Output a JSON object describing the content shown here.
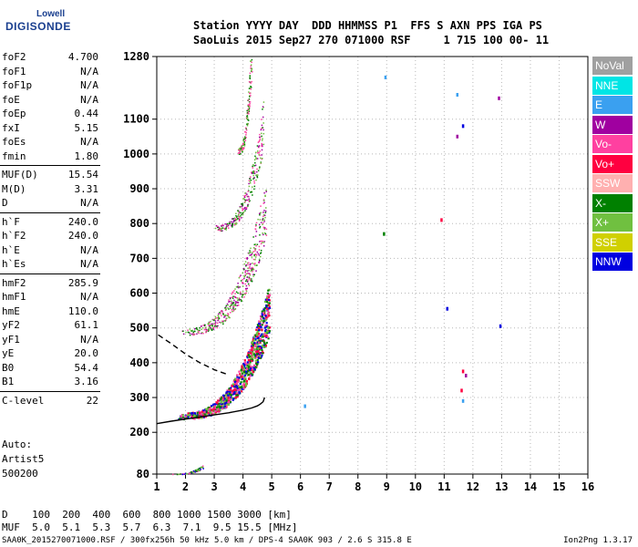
{
  "logo": {
    "line1": "Lowell",
    "line2": "DIGISONDE"
  },
  "header": {
    "line1": "Station YYYY DAY  DDD HHMMSS P1  FFS S AXN PPS IGA PS",
    "line2": "SaoLuis 2015 Sep27 270 071000 RSF     1 715 100 00- 11"
  },
  "params": [
    {
      "key": "foF2",
      "value": "4.700"
    },
    {
      "key": "foF1",
      "value": "N/A"
    },
    {
      "key": "foF1p",
      "value": "N/A"
    },
    {
      "key": "foE",
      "value": "N/A"
    },
    {
      "key": "foEp",
      "value": "0.44"
    },
    {
      "key": "fxI",
      "value": "5.15"
    },
    {
      "key": "foEs",
      "value": "N/A"
    },
    {
      "key": "fmin",
      "value": "1.80"
    },
    {
      "key": "MUF(D)",
      "value": "15.54"
    },
    {
      "key": "M(D)",
      "value": "3.31"
    },
    {
      "key": "D",
      "value": "N/A"
    },
    {
      "key": "h`F",
      "value": "240.0"
    },
    {
      "key": "h`F2",
      "value": "240.0"
    },
    {
      "key": "h`E",
      "value": "N/A"
    },
    {
      "key": "h`Es",
      "value": "N/A"
    },
    {
      "key": "hmF2",
      "value": "285.9"
    },
    {
      "key": "hmF1",
      "value": "N/A"
    },
    {
      "key": "hmE",
      "value": "110.0"
    },
    {
      "key": "yF2",
      "value": "61.1"
    },
    {
      "key": "yF1",
      "value": "N/A"
    },
    {
      "key": "yE",
      "value": "20.0"
    },
    {
      "key": "B0",
      "value": "54.4"
    },
    {
      "key": "B1",
      "value": "3.16"
    },
    {
      "key": "C-level",
      "value": "22"
    }
  ],
  "auto": {
    "line1": "Auto:",
    "line2": "Artist5",
    "line3": "500200"
  },
  "legend": [
    {
      "label": "NoVal",
      "color": "#a0a0a0"
    },
    {
      "label": "NNE",
      "color": "#00e5e5"
    },
    {
      "label": "E",
      "color": "#3aa0f0"
    },
    {
      "label": "W",
      "color": "#a000a0"
    },
    {
      "label": "Vo-",
      "color": "#ff40a0"
    },
    {
      "label": "Vo+",
      "color": "#ff0040"
    },
    {
      "label": "SSW",
      "color": "#ffb0b0"
    },
    {
      "label": "X-",
      "color": "#008000"
    },
    {
      "label": "X+",
      "color": "#70c040"
    },
    {
      "label": "SSE",
      "color": "#d0d000"
    },
    {
      "label": "NNW",
      "color": "#0000e0"
    }
  ],
  "muf_table": {
    "line1": "D    100  200  400  600  800 1000 1500 3000 [km]",
    "line2": "MUF  5.0  5.1  5.3  5.7  6.3  7.1  9.5 15.5 [MHz]"
  },
  "footer": "SAA0K_2015270071000.RSF / 300fx256h 50 kHz 5.0 km / DPS-4 SAA0K 903 / 2.6 S 315.8 E",
  "version": "Ion2Png 1.3.17",
  "chart_data": {
    "type": "scatter",
    "x_ticks": [
      "1",
      "2",
      "3",
      "4",
      "5",
      "6",
      "7",
      "8",
      "9",
      "10",
      "11",
      "12",
      "13",
      "14",
      "15",
      "16"
    ],
    "y_ticks": [
      "80",
      "200",
      "300",
      "400",
      "500",
      "600",
      "700",
      "800",
      "900",
      "1000",
      "1100",
      "1280"
    ],
    "xlim": [
      1,
      16
    ],
    "ylim": [
      80,
      1280
    ],
    "grid": true,
    "legend_position": "right",
    "traces": [
      {
        "name": "o-trace",
        "color": "#000000",
        "style": "solid",
        "x": [
          1.0,
          1.5,
          2.0,
          2.5,
          3.0,
          3.5,
          4.0,
          4.3,
          4.5,
          4.6,
          4.7,
          4.75
        ],
        "y": [
          225,
          232,
          238,
          244,
          250,
          256,
          264,
          270,
          276,
          281,
          288,
          300
        ]
      },
      {
        "name": "e-region",
        "color": "#000000",
        "style": "dashed",
        "x": [
          1.05,
          1.5,
          2.0,
          2.5,
          3.0,
          3.5
        ],
        "y": [
          480,
          455,
          425,
          400,
          380,
          365
        ]
      }
    ],
    "echo_layers": [
      {
        "fmin": 1.7,
        "fmax": 4.9,
        "h0": 240,
        "h1": 520,
        "colors": [
          "#0000e0",
          "#ff40a0",
          "#008000",
          "#ff0040",
          "#70c040"
        ],
        "n": 900
      },
      {
        "fmin": 1.8,
        "fmax": 4.8,
        "h0": 480,
        "h1": 800,
        "colors": [
          "#ff40a0",
          "#008000",
          "#a000a0",
          "#70c040"
        ],
        "n": 450
      },
      {
        "fmin": 3.0,
        "fmax": 4.7,
        "h0": 780,
        "h1": 1050,
        "colors": [
          "#ff40a0",
          "#008000",
          "#a000a0",
          "#70c040"
        ],
        "n": 250
      },
      {
        "fmin": 3.8,
        "fmax": 4.3,
        "h0": 1000,
        "h1": 1280,
        "colors": [
          "#70c040",
          "#ff40a0",
          "#008000"
        ],
        "n": 140
      },
      {
        "fmin": 1.5,
        "fmax": 2.6,
        "h0": 80,
        "h1": 100,
        "colors": [
          "#ff40a0",
          "#008000",
          "#0000e0",
          "#70c040"
        ],
        "n": 60
      }
    ],
    "scattered_points": [
      {
        "x": 10.9,
        "y": 810,
        "color": "#ff0040"
      },
      {
        "x": 8.9,
        "y": 770,
        "color": "#008000"
      },
      {
        "x": 11.1,
        "y": 555,
        "color": "#0000e0"
      },
      {
        "x": 12.95,
        "y": 505,
        "color": "#0000e0"
      },
      {
        "x": 11.65,
        "y": 375,
        "color": "#ff0040"
      },
      {
        "x": 11.75,
        "y": 363,
        "color": "#a000a0"
      },
      {
        "x": 11.6,
        "y": 320,
        "color": "#ff0040"
      },
      {
        "x": 11.65,
        "y": 290,
        "color": "#3aa0f0"
      },
      {
        "x": 11.45,
        "y": 1050,
        "color": "#a000a0"
      },
      {
        "x": 11.65,
        "y": 1080,
        "color": "#0000e0"
      },
      {
        "x": 12.9,
        "y": 1160,
        "color": "#a000a0"
      },
      {
        "x": 8.95,
        "y": 1220,
        "color": "#3aa0f0"
      },
      {
        "x": 11.45,
        "y": 1170,
        "color": "#3aa0f0"
      },
      {
        "x": 6.15,
        "y": 275,
        "color": "#3aa0f0"
      }
    ]
  }
}
